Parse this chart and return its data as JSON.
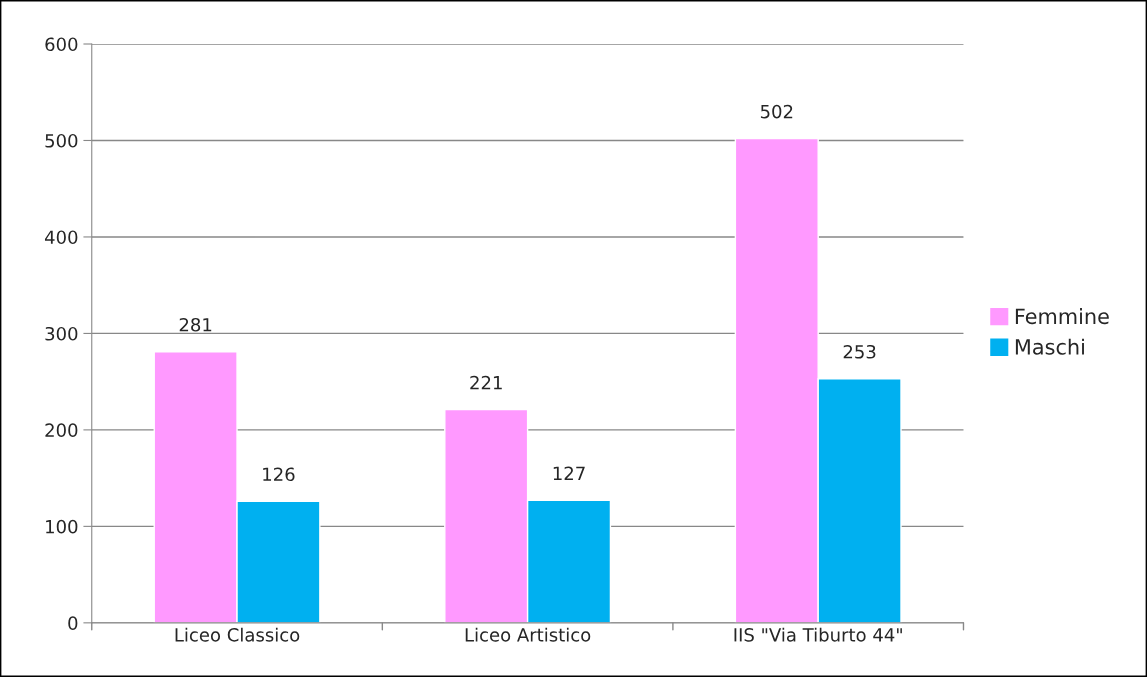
{
  "chart_data": {
    "type": "bar",
    "categories": [
      "Liceo Classico",
      "Liceo Artistico",
      "IIS \"Via Tiburto 44\""
    ],
    "series": [
      {
        "name": "Femmine",
        "color": "#ff99ff",
        "values": [
          281,
          221,
          502
        ]
      },
      {
        "name": "Maschi",
        "color": "#00b0f0",
        "values": [
          126,
          127,
          253
        ]
      }
    ],
    "ylim": [
      0,
      600
    ],
    "yticks": [
      0,
      100,
      200,
      300,
      400,
      500,
      600
    ],
    "grid": "y",
    "legend": "right",
    "data_labels": true
  }
}
